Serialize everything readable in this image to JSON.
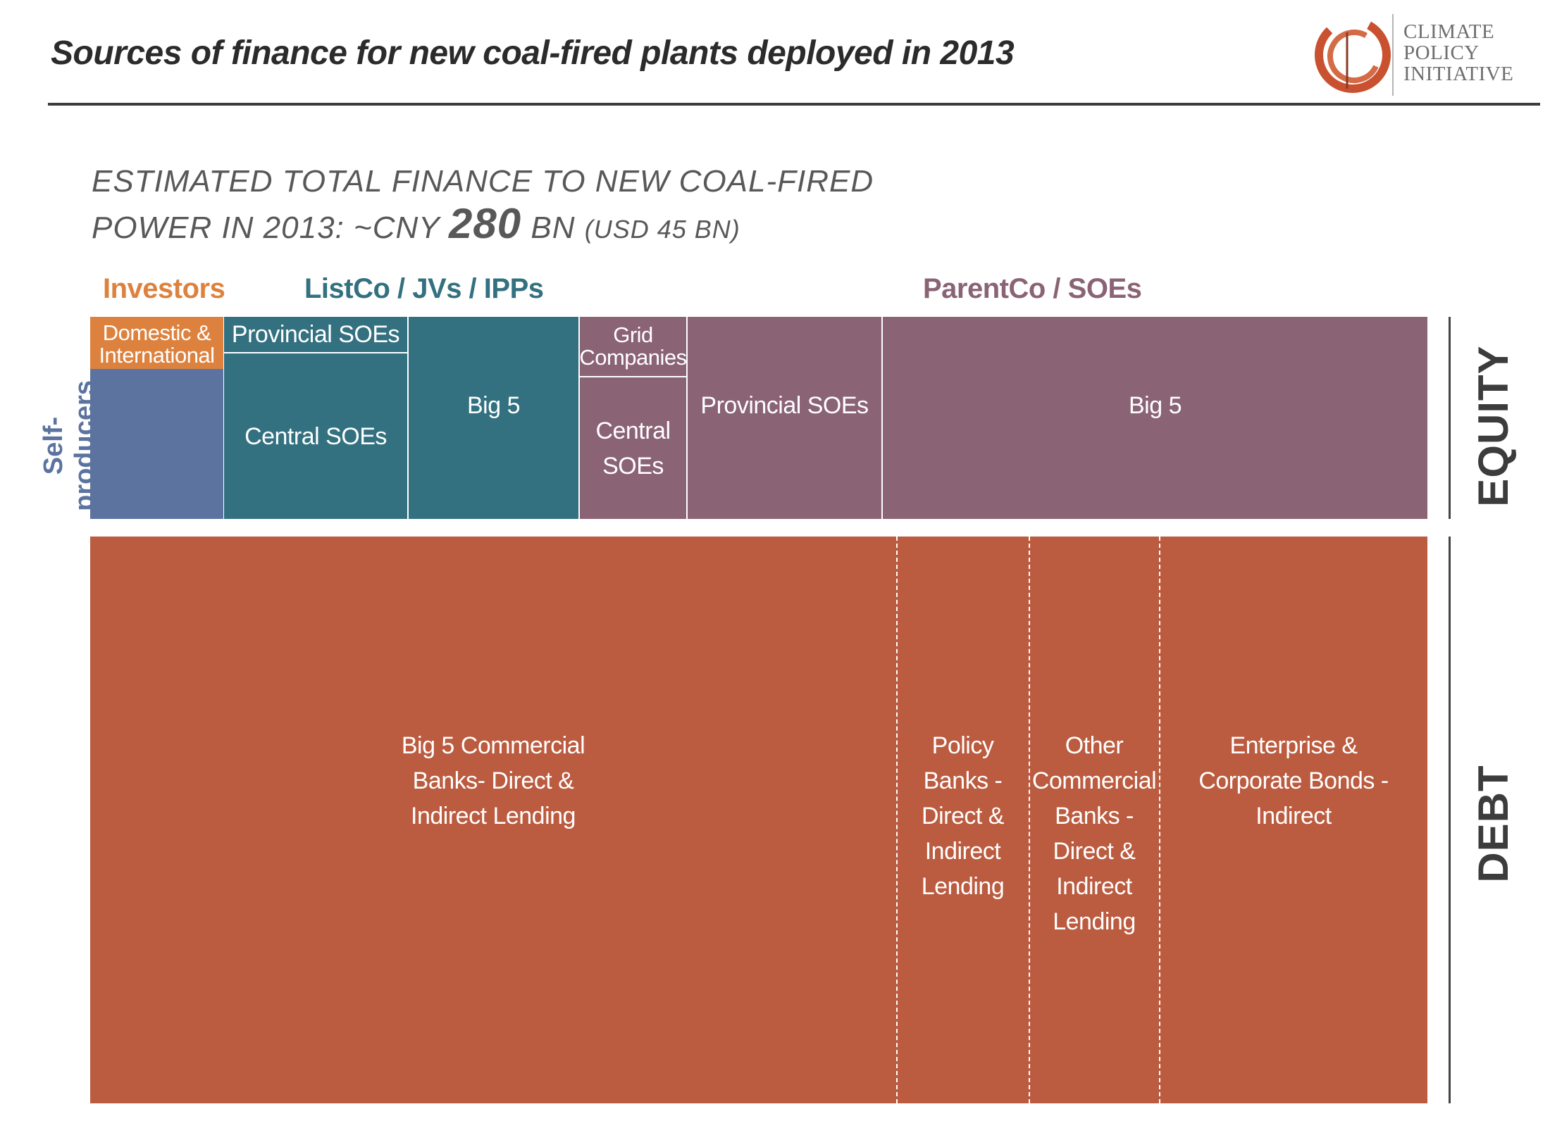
{
  "header": {
    "title": "Sources of  finance for new coal-fired plants deployed in 2013",
    "logo_text_lines": [
      "CLIMATE",
      "POLICY",
      "INITIATIVE"
    ]
  },
  "subtitle": {
    "line1": "ESTIMATED TOTAL FINANCE TO NEW COAL-FIRED",
    "line2_prefix": "POWER IN 2013: ~CNY ",
    "line2_big": "280",
    "line2_suffix": " BN ",
    "line2_small": "(USD 45 BN)"
  },
  "colors": {
    "investors": "#dd823e",
    "self_producers": "#5b739e",
    "listco": "#337180",
    "parentco": "#8a6374",
    "debt": "#bb5b3f"
  },
  "chart_data": {
    "type": "treemap",
    "total": "~CNY 280 BN (USD 45 BN)",
    "groups": [
      {
        "name": "Investors",
        "color": "#dd823e"
      },
      {
        "name": "ListCo / JVs / IPPs",
        "color": "#337180"
      },
      {
        "name": "ParentCo / SOEs",
        "color": "#8a6374"
      }
    ],
    "side_labels": {
      "equity": "EQUITY",
      "debt": "DEBT",
      "self_producers": "Self-\nproducers"
    },
    "equity_blocks": [
      {
        "label": "Domestic &\nInternational",
        "group": "Investors"
      },
      {
        "label": "",
        "group": "Self-producers"
      },
      {
        "label": "Provincial SOEs",
        "group": "ListCo / JVs / IPPs"
      },
      {
        "label": "Central SOEs",
        "group": "ListCo / JVs / IPPs"
      },
      {
        "label": "Big 5",
        "group": "ListCo / JVs / IPPs"
      },
      {
        "label": "Grid\nCompanies",
        "group": "ParentCo / SOEs"
      },
      {
        "label": "Central\nSOEs",
        "group": "ParentCo / SOEs"
      },
      {
        "label": "Provincial SOEs",
        "group": "ParentCo / SOEs"
      },
      {
        "label": "Big 5",
        "group": "ParentCo / SOEs"
      }
    ],
    "debt_blocks": [
      {
        "label": "Big 5 Commercial\nBanks- Direct &\nIndirect Lending"
      },
      {
        "label": "Policy\nBanks -\nDirect &\nIndirect\nLending"
      },
      {
        "label": "Other\nCommercial\nBanks -\nDirect &\nIndirect\nLending"
      },
      {
        "label": "Enterprise &\nCorporate Bonds -\nIndirect"
      }
    ]
  }
}
